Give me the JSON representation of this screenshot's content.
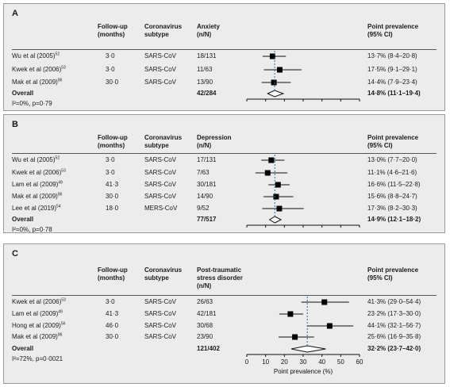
{
  "headers": {
    "followup": [
      "Follow-up",
      "(months)"
    ],
    "subtype": [
      "Coronavirus",
      "subtype"
    ],
    "prevalence": [
      "Point prevalence",
      "(95% CI)"
    ]
  },
  "panels": [
    {
      "letter": "A",
      "outcome": [
        "Anxiety",
        "(n/N)"
      ],
      "studies": [
        {
          "study": "Wu et al (2005)",
          "ref": "52",
          "followup": "3·0",
          "subtype": "SARS-CoV",
          "nN": "18/131",
          "ci_text": "13·7% (8·4–20·8)",
          "point": 13.7,
          "lo": 8.4,
          "hi": 20.8
        },
        {
          "study": "Kwek et al (2006)",
          "ref": "53",
          "followup": "3·0",
          "subtype": "SARS-CoV",
          "nN": "11/63",
          "ci_text": "17·5% (9·1–29·1)",
          "point": 17.5,
          "lo": 9.1,
          "hi": 29.1
        },
        {
          "study": "Mak et al (2009)",
          "ref": "86",
          "followup": "30·0",
          "subtype": "SARS-CoV",
          "nN": "13/90",
          "ci_text": "14·4% (7·9–23·4)",
          "point": 14.4,
          "lo": 7.9,
          "hi": 23.4
        }
      ],
      "overall": {
        "label": "Overall",
        "nN": "42/284",
        "ci_text": "14·8% (11·1–19·4)",
        "point": 14.8,
        "lo": 11.1,
        "hi": 19.4
      },
      "heterogeneity": "I²=0%, p=0·79"
    },
    {
      "letter": "B",
      "outcome": [
        "Depression",
        "(n/N)"
      ],
      "studies": [
        {
          "study": "Wu et al (2005)",
          "ref": "52",
          "followup": "3·0",
          "subtype": "SARS-CoV",
          "nN": "17/131",
          "ci_text": "13·0% (7·7–20·0)",
          "point": 13.0,
          "lo": 7.7,
          "hi": 20.0
        },
        {
          "study": "Kwek et al (2006)",
          "ref": "53",
          "followup": "3·0",
          "subtype": "SARS-CoV",
          "nN": "7/63",
          "ci_text": "11·1% (4·6–21·6)",
          "point": 11.1,
          "lo": 4.6,
          "hi": 21.6
        },
        {
          "study": "Lam et al (2009)",
          "ref": "49",
          "followup": "41·3",
          "subtype": "SARS-CoV",
          "nN": "30/181",
          "ci_text": "16·6% (11·5–22·8)",
          "point": 16.6,
          "lo": 11.5,
          "hi": 22.8
        },
        {
          "study": "Mak et al (2009)",
          "ref": "86",
          "followup": "30·0",
          "subtype": "SARS-CoV",
          "nN": "14/90",
          "ci_text": "15·6% (8·8–24·7)",
          "point": 15.6,
          "lo": 8.8,
          "hi": 24.7
        },
        {
          "study": "Lee et al (2019)",
          "ref": "54",
          "followup": "18·0",
          "subtype": "MERS-CoV",
          "nN": "9/52",
          "ci_text": "17·3% (8·2–30·3)",
          "point": 17.3,
          "lo": 8.2,
          "hi": 30.3
        }
      ],
      "overall": {
        "label": "Overall",
        "nN": "77/517",
        "ci_text": "14·9% (12·1–18·2)",
        "point": 14.9,
        "lo": 12.1,
        "hi": 18.2
      },
      "heterogeneity": "I²=0%, p=0·78"
    },
    {
      "letter": "C",
      "outcome": [
        "Post-traumatic",
        "stress disorder",
        "(n/N)"
      ],
      "studies": [
        {
          "study": "Kwek et al (2006)",
          "ref": "53",
          "followup": "3·0",
          "subtype": "SARS-CoV",
          "nN": "26/63",
          "ci_text": "41·3% (29·0–54·4)",
          "point": 41.3,
          "lo": 29.0,
          "hi": 54.4
        },
        {
          "study": "Lam et al (2009)",
          "ref": "49",
          "followup": "41·3",
          "subtype": "SARS-CoV",
          "nN": "42/181",
          "ci_text": "23·2% (17·3–30·0)",
          "point": 23.2,
          "lo": 17.3,
          "hi": 30.0
        },
        {
          "study": "Hong et al (2009)",
          "ref": "56",
          "followup": "46·0",
          "subtype": "SARS-CoV",
          "nN": "30/68",
          "ci_text": "44·1% (32·1–56·7)",
          "point": 44.1,
          "lo": 32.1,
          "hi": 56.7
        },
        {
          "study": "Mak et al (2009)",
          "ref": "86",
          "followup": "30·0",
          "subtype": "SARS-CoV",
          "nN": "23/90",
          "ci_text": "25·6% (16·9–35·8)",
          "point": 25.6,
          "lo": 16.9,
          "hi": 35.8
        }
      ],
      "overall": {
        "label": "Overall",
        "nN": "121/402",
        "ci_text": "32·2% (23·7–42·0)",
        "point": 32.2,
        "lo": 23.7,
        "hi": 42.0
      },
      "heterogeneity": "I²=72%, p=0·0021"
    }
  ],
  "axis": {
    "ticks": [
      0,
      10,
      20,
      30,
      40,
      50,
      60
    ],
    "label": "Point prevalence (%)"
  },
  "chart_data": {
    "type": "forest",
    "xlabel": "Point prevalence (%)",
    "xlim": [
      0,
      60
    ],
    "grid": false,
    "subplots": [
      {
        "panel": "A",
        "outcome": "Anxiety",
        "categories": [
          "Wu et al (2005)",
          "Kwek et al (2006)",
          "Mak et al (2009)",
          "Overall"
        ],
        "values": [
          13.7,
          17.5,
          14.4,
          14.8
        ],
        "ci_low": [
          8.4,
          9.1,
          7.9,
          11.1
        ],
        "ci_high": [
          20.8,
          29.1,
          23.4,
          19.4
        ]
      },
      {
        "panel": "B",
        "outcome": "Depression",
        "categories": [
          "Wu et al (2005)",
          "Kwek et al (2006)",
          "Lam et al (2009)",
          "Mak et al (2009)",
          "Lee et al (2019)",
          "Overall"
        ],
        "values": [
          13.0,
          11.1,
          16.6,
          15.6,
          17.3,
          14.9
        ],
        "ci_low": [
          7.7,
          4.6,
          11.5,
          8.8,
          8.2,
          12.1
        ],
        "ci_high": [
          20.0,
          21.6,
          22.8,
          24.7,
          30.3,
          18.2
        ]
      },
      {
        "panel": "C",
        "outcome": "Post-traumatic stress disorder",
        "categories": [
          "Kwek et al (2006)",
          "Lam et al (2009)",
          "Hong et al (2009)",
          "Mak et al (2009)",
          "Overall"
        ],
        "values": [
          41.3,
          23.2,
          44.1,
          25.6,
          32.2
        ],
        "ci_low": [
          29.0,
          17.3,
          32.1,
          16.9,
          23.7
        ],
        "ci_high": [
          54.4,
          30.0,
          56.7,
          35.8,
          42.0
        ]
      }
    ]
  }
}
